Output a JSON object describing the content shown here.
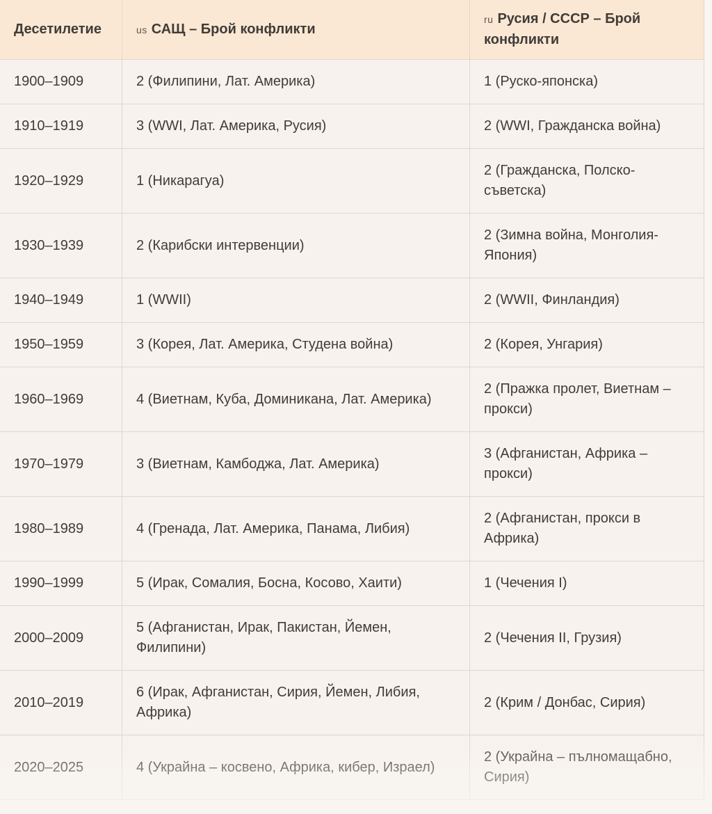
{
  "colors": {
    "header_bg": "#fbe8d4",
    "row_bg": "#f7f2ee",
    "page_bg": "#f9f6f2",
    "border": "#e0d7cd",
    "text": "#403c38",
    "muted": "#5a5550"
  },
  "table": {
    "columns": [
      {
        "prefix": "",
        "label": "Десетилетие"
      },
      {
        "prefix": "us",
        "label": "САЩ – Брой конфликти"
      },
      {
        "prefix": "ru",
        "label": "Русия / СССР – Брой конфликти"
      }
    ],
    "rows": [
      {
        "decade": "1900–1909",
        "us": "2 (Филипини, Лат. Америка)",
        "ru": "1 (Руско-японска)"
      },
      {
        "decade": "1910–1919",
        "us": "3 (WWI, Лат. Америка, Русия)",
        "ru": "2 (WWI, Гражданска война)"
      },
      {
        "decade": "1920–1929",
        "us": "1 (Никарагуа)",
        "ru": "2 (Гражданска, Полско-съветска)"
      },
      {
        "decade": "1930–1939",
        "us": "2 (Карибски интервенции)",
        "ru": "2 (Зимна война, Монголия-Япония)"
      },
      {
        "decade": "1940–1949",
        "us": "1 (WWII)",
        "ru": "2 (WWII, Финландия)"
      },
      {
        "decade": "1950–1959",
        "us": "3 (Корея, Лат. Америка, Студена война)",
        "ru": "2 (Корея, Унгария)"
      },
      {
        "decade": "1960–1969",
        "us": "4 (Виетнам, Куба, Доминикана, Лат. Америка)",
        "ru": "2 (Пражка пролет, Виетнам – прокси)"
      },
      {
        "decade": "1970–1979",
        "us": "3 (Виетнам, Камбоджа, Лат. Америка)",
        "ru": "3 (Афганистан, Африка – прокси)"
      },
      {
        "decade": "1980–1989",
        "us": "4 (Гренада, Лат. Америка, Панама, Либия)",
        "ru": "2 (Афганистан, прокси в Африка)"
      },
      {
        "decade": "1990–1999",
        "us": "5 (Ирак, Сомалия, Босна, Косово, Хаити)",
        "ru": "1 (Чечения I)"
      },
      {
        "decade": "2000–2009",
        "us": "5 (Афганистан, Ирак, Пакистан, Йемен, Филипини)",
        "ru": "2 (Чечения II, Грузия)"
      },
      {
        "decade": "2010–2019",
        "us": "6 (Ирак, Афганистан, Сирия, Йемен, Либия, Африка)",
        "ru": "2 (Крим / Донбас, Сирия)"
      },
      {
        "decade": "2020–2025",
        "us": "4 (Украйна – косвено, Африка, кибер, Израел)",
        "ru": "2 (Украйна – пълномащабно, Сирия)"
      }
    ]
  }
}
